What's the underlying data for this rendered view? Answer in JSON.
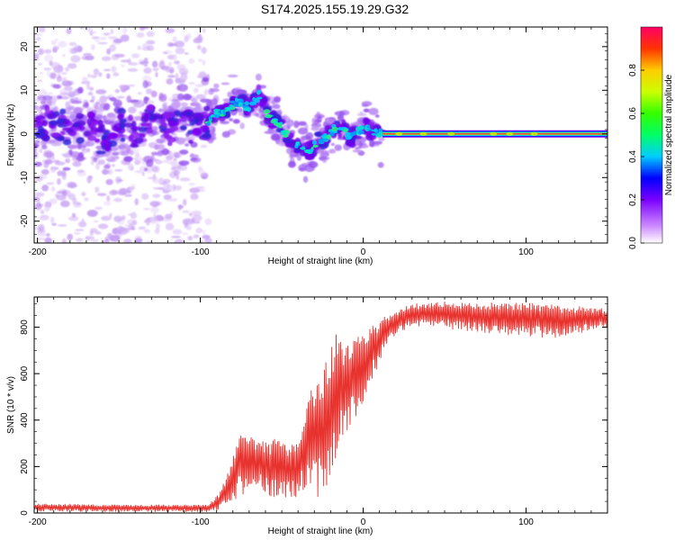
{
  "figure": {
    "title": "S174.2025.155.19.29.G32"
  },
  "colors": {
    "line": "#e8322e",
    "track": "#e01a56",
    "axis": "#000000"
  },
  "chart_data": [
    {
      "type": "heatmap",
      "xlabel": "Height of straight line (km)",
      "ylabel": "Frequency (Hz)",
      "xlim": [
        -202,
        150
      ],
      "ylim": [
        -25,
        24.5
      ],
      "xticks": [
        -200,
        -100,
        0,
        100
      ],
      "yticks": [
        -20,
        -10,
        0,
        10,
        20
      ],
      "colorbar": {
        "label": "Normalized spectral amplitude",
        "range": [
          0,
          1
        ],
        "ticks": [
          "0.0",
          "0.2",
          "0.4",
          "0.6",
          "0.8"
        ],
        "colormap": "rainbow"
      },
      "features": {
        "scattered_noise_x": [
          -202,
          -95
        ],
        "dominant_track": [
          {
            "x": -200,
            "y": 1.5
          },
          {
            "x": -190,
            "y": 3
          },
          {
            "x": -180,
            "y": 0.5
          },
          {
            "x": -170,
            "y": 2
          },
          {
            "x": -160,
            "y": -1.5
          },
          {
            "x": -150,
            "y": 2.5
          },
          {
            "x": -140,
            "y": 0
          },
          {
            "x": -130,
            "y": 3.5
          },
          {
            "x": -120,
            "y": 1
          },
          {
            "x": -110,
            "y": 2.5
          },
          {
            "x": -100,
            "y": 0.5
          },
          {
            "x": -92,
            "y": 4.5
          },
          {
            "x": -85,
            "y": 5
          },
          {
            "x": -78,
            "y": 7.5
          },
          {
            "x": -70,
            "y": 6
          },
          {
            "x": -64,
            "y": 9
          },
          {
            "x": -58,
            "y": 4
          },
          {
            "x": -52,
            "y": 2.5
          },
          {
            "x": -46,
            "y": -1
          },
          {
            "x": -40,
            "y": -2.5
          },
          {
            "x": -33,
            "y": -4
          },
          {
            "x": -27,
            "y": -1.5
          },
          {
            "x": -22,
            "y": -0.5
          },
          {
            "x": -17,
            "y": 1.5
          },
          {
            "x": -12,
            "y": 1
          },
          {
            "x": -7,
            "y": -1
          },
          {
            "x": -3,
            "y": 0.5
          },
          {
            "x": 2,
            "y": 1.5
          },
          {
            "x": 7,
            "y": 0.5
          },
          {
            "x": 12,
            "y": 0
          },
          {
            "x": 150,
            "y": 0
          }
        ],
        "steady_line": {
          "x": [
            12,
            150
          ],
          "y": 0
        }
      }
    },
    {
      "type": "line",
      "xlabel": "Height of straight line (km)",
      "ylabel": "SNR (10 * v/v)",
      "xlim": [
        -202,
        150
      ],
      "ylim": [
        0,
        930
      ],
      "xticks": [
        -200,
        -100,
        0,
        100
      ],
      "yticks": [
        0,
        200,
        400,
        600,
        800
      ],
      "envelope": [
        {
          "x": -202,
          "lo": 8,
          "hi": 40
        },
        {
          "x": -150,
          "lo": 5,
          "hi": 35
        },
        {
          "x": -95,
          "lo": 5,
          "hi": 35
        },
        {
          "x": -88,
          "lo": 10,
          "hi": 90
        },
        {
          "x": -82,
          "lo": 30,
          "hi": 200
        },
        {
          "x": -76,
          "lo": 60,
          "hi": 370
        },
        {
          "x": -70,
          "lo": 80,
          "hi": 340
        },
        {
          "x": -64,
          "lo": 90,
          "hi": 320
        },
        {
          "x": -58,
          "lo": 70,
          "hi": 300
        },
        {
          "x": -50,
          "lo": 60,
          "hi": 340
        },
        {
          "x": -44,
          "lo": 50,
          "hi": 290
        },
        {
          "x": -38,
          "lo": 90,
          "hi": 380
        },
        {
          "x": -33,
          "lo": 120,
          "hi": 510
        },
        {
          "x": -28,
          "lo": 70,
          "hi": 590
        },
        {
          "x": -24,
          "lo": 30,
          "hi": 650
        },
        {
          "x": -20,
          "lo": 120,
          "hi": 720
        },
        {
          "x": -16,
          "lo": 220,
          "hi": 780
        },
        {
          "x": -12,
          "lo": 320,
          "hi": 720
        },
        {
          "x": -8,
          "lo": 380,
          "hi": 760
        },
        {
          "x": -4,
          "lo": 400,
          "hi": 760
        },
        {
          "x": 0,
          "lo": 470,
          "hi": 770
        },
        {
          "x": 5,
          "lo": 560,
          "hi": 810
        },
        {
          "x": 10,
          "lo": 650,
          "hi": 830
        },
        {
          "x": 16,
          "lo": 730,
          "hi": 860
        },
        {
          "x": 22,
          "lo": 770,
          "hi": 880
        },
        {
          "x": 30,
          "lo": 800,
          "hi": 900
        },
        {
          "x": 40,
          "lo": 800,
          "hi": 905
        },
        {
          "x": 55,
          "lo": 790,
          "hi": 910
        },
        {
          "x": 70,
          "lo": 780,
          "hi": 905
        },
        {
          "x": 85,
          "lo": 770,
          "hi": 910
        },
        {
          "x": 100,
          "lo": 760,
          "hi": 905
        },
        {
          "x": 115,
          "lo": 750,
          "hi": 900
        },
        {
          "x": 130,
          "lo": 770,
          "hi": 890
        },
        {
          "x": 150,
          "lo": 800,
          "hi": 880
        }
      ]
    }
  ]
}
